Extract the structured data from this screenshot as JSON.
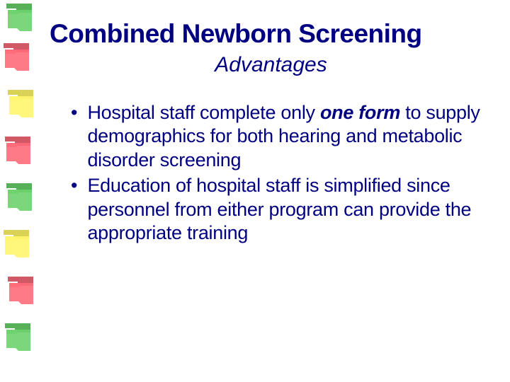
{
  "title": "Combined Newborn Screening",
  "subtitle": "Advantages",
  "bullets": {
    "b0": {
      "pre": "Hospital staff complete only ",
      "bold": "one form",
      "post": " to supply demographics for both hearing and metabolic disorder screening"
    },
    "b1": {
      "text": "Education of hospital staff is simplified since personnel from either program can provide the appropriate training"
    }
  },
  "decorations": {
    "colors": [
      "#6ed36e",
      "#ff6b7a",
      "#fff66e",
      "#ff6b7a",
      "#6ed36e",
      "#fff66e",
      "#ff6b7a",
      "#6ed36e"
    ],
    "dark_colors": [
      "#3aa13a",
      "#c93b4a",
      "#d4c93a",
      "#c93b4a",
      "#3aa13a",
      "#d4c93a",
      "#c93b4a",
      "#3aa13a"
    ],
    "positions": [
      0,
      56,
      122,
      188,
      254,
      320,
      386,
      452
    ],
    "left_offsets": [
      4,
      0,
      6,
      2,
      4,
      0,
      6,
      2
    ]
  },
  "colors": {
    "text": "#000080",
    "background": "#ffffff"
  },
  "typography": {
    "title_fontsize": 37,
    "subtitle_fontsize": 30,
    "body_fontsize": 27
  }
}
